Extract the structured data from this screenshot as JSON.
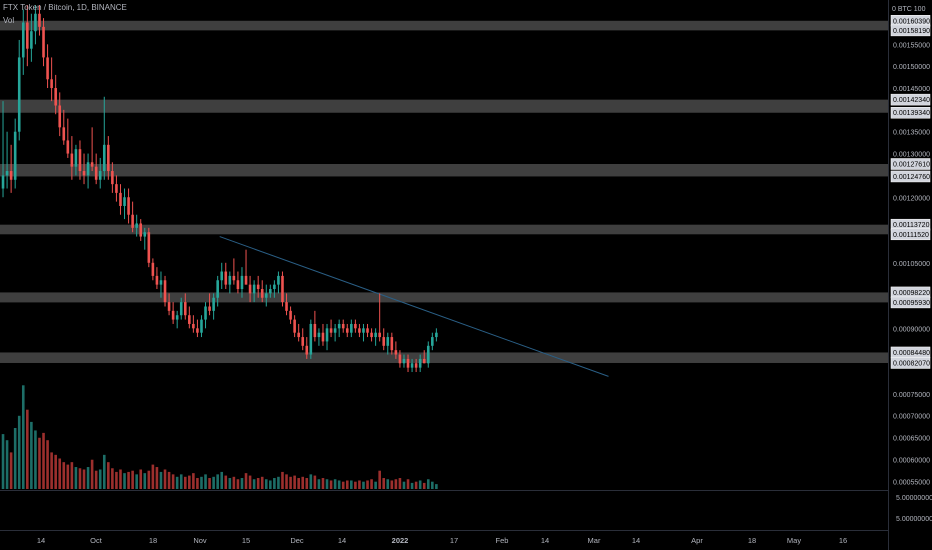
{
  "header": {
    "title": "FTX Token / Bitcoin, 1D, BINANCE",
    "vol_label": "Vol"
  },
  "colors": {
    "background": "#000000",
    "up": "#26a69a",
    "down": "#ef5350",
    "vol_up": "#1d6e67",
    "vol_down": "#9c2f2d",
    "zone": "#4a4a4a",
    "trendline": "#2a5f86",
    "axis_text": "#b2b5be",
    "label_bg": "#d1d4dc",
    "label_text": "#000000"
  },
  "chart_data": {
    "type": "candlestick",
    "symbol": "FTX Token / Bitcoin",
    "timeframe": "1D",
    "exchange": "BINANCE",
    "currency": "BTC",
    "ylim": [
      0.00053,
      0.00164
    ],
    "price_ticks": [
      "0.00155000",
      "0.00150000",
      "0.00145000",
      "0.00135000",
      "0.00130000",
      "0.00120000",
      "0.00105000",
      "0.00090000",
      "0.00075000",
      "0.00070000",
      "0.00065000",
      "0.00060000",
      "0.00055000"
    ],
    "axis_header": "0 BTC 100",
    "volume_scale_ticks": [
      "5.00000000",
      "5.00000000"
    ],
    "x_ticks": [
      "14",
      "Oct",
      "18",
      "Nov",
      "15",
      "Dec",
      "14",
      "2022",
      "17",
      "Feb",
      "14",
      "Mar",
      "14",
      "Apr",
      "18",
      "May",
      "16"
    ],
    "zones": [
      {
        "top": 0.0016039,
        "bottom": 0.0015819
      },
      {
        "top": 0.0014234,
        "bottom": 0.0013934
      },
      {
        "top": 0.0012761,
        "bottom": 0.0012476
      },
      {
        "top": 0.0011372,
        "bottom": 0.0011152
      },
      {
        "top": 0.0009822,
        "bottom": 0.0009593
      },
      {
        "top": 0.0008448,
        "bottom": 0.0008207
      }
    ],
    "trendline": {
      "from": {
        "date": "2021-10-26",
        "price": 0.00111
      },
      "to": {
        "date": "2022-01-30",
        "price": 0.00079
      }
    },
    "candles": [
      {
        "o": 0.00122,
        "h": 0.00142,
        "l": 0.0012,
        "c": 0.00125,
        "v": 0.45
      },
      {
        "o": 0.00125,
        "h": 0.00135,
        "l": 0.00122,
        "c": 0.00126,
        "v": 0.4
      },
      {
        "o": 0.00126,
        "h": 0.00132,
        "l": 0.00121,
        "c": 0.00124,
        "v": 0.3
      },
      {
        "o": 0.00124,
        "h": 0.00138,
        "l": 0.00122,
        "c": 0.00135,
        "v": 0.5
      },
      {
        "o": 0.00135,
        "h": 0.00156,
        "l": 0.00133,
        "c": 0.00152,
        "v": 0.6
      },
      {
        "o": 0.00152,
        "h": 0.00163,
        "l": 0.00148,
        "c": 0.0016,
        "v": 0.85
      },
      {
        "o": 0.0016,
        "h": 0.00164,
        "l": 0.0015,
        "c": 0.00154,
        "v": 0.65
      },
      {
        "o": 0.00154,
        "h": 0.00162,
        "l": 0.00151,
        "c": 0.00158,
        "v": 0.55
      },
      {
        "o": 0.00158,
        "h": 0.00164,
        "l": 0.00155,
        "c": 0.00162,
        "v": 0.48
      },
      {
        "o": 0.00162,
        "h": 0.00164,
        "l": 0.00157,
        "c": 0.00159,
        "v": 0.42
      },
      {
        "o": 0.00159,
        "h": 0.00161,
        "l": 0.0015,
        "c": 0.00152,
        "v": 0.46
      },
      {
        "o": 0.00152,
        "h": 0.00155,
        "l": 0.00145,
        "c": 0.00147,
        "v": 0.4
      },
      {
        "o": 0.00147,
        "h": 0.00152,
        "l": 0.00142,
        "c": 0.00145,
        "v": 0.3
      },
      {
        "o": 0.00145,
        "h": 0.00148,
        "l": 0.00139,
        "c": 0.00141,
        "v": 0.28
      },
      {
        "o": 0.00141,
        "h": 0.00144,
        "l": 0.00134,
        "c": 0.00136,
        "v": 0.25
      },
      {
        "o": 0.00136,
        "h": 0.0014,
        "l": 0.00132,
        "c": 0.00133,
        "v": 0.22
      },
      {
        "o": 0.00133,
        "h": 0.00138,
        "l": 0.00129,
        "c": 0.0013,
        "v": 0.2
      },
      {
        "o": 0.0013,
        "h": 0.00134,
        "l": 0.00124,
        "c": 0.00127,
        "v": 0.22
      },
      {
        "o": 0.00127,
        "h": 0.00132,
        "l": 0.00125,
        "c": 0.00131,
        "v": 0.18
      },
      {
        "o": 0.00131,
        "h": 0.00133,
        "l": 0.00124,
        "c": 0.00126,
        "v": 0.17
      },
      {
        "o": 0.00126,
        "h": 0.0013,
        "l": 0.00123,
        "c": 0.00125,
        "v": 0.16
      },
      {
        "o": 0.00125,
        "h": 0.0013,
        "l": 0.00122,
        "c": 0.00128,
        "v": 0.18
      },
      {
        "o": 0.00128,
        "h": 0.00136,
        "l": 0.00126,
        "c": 0.00127,
        "v": 0.24
      },
      {
        "o": 0.00127,
        "h": 0.0013,
        "l": 0.00123,
        "c": 0.00124,
        "v": 0.15
      },
      {
        "o": 0.00124,
        "h": 0.00129,
        "l": 0.00122,
        "c": 0.00126,
        "v": 0.16
      },
      {
        "o": 0.00126,
        "h": 0.00143,
        "l": 0.00124,
        "c": 0.00132,
        "v": 0.28
      },
      {
        "o": 0.00132,
        "h": 0.00134,
        "l": 0.00124,
        "c": 0.00126,
        "v": 0.22
      },
      {
        "o": 0.00126,
        "h": 0.00128,
        "l": 0.00121,
        "c": 0.00123,
        "v": 0.17
      },
      {
        "o": 0.00123,
        "h": 0.00125,
        "l": 0.00119,
        "c": 0.00121,
        "v": 0.14
      },
      {
        "o": 0.00121,
        "h": 0.00123,
        "l": 0.00116,
        "c": 0.00118,
        "v": 0.16
      },
      {
        "o": 0.00118,
        "h": 0.00122,
        "l": 0.00115,
        "c": 0.0012,
        "v": 0.13
      },
      {
        "o": 0.0012,
        "h": 0.00122,
        "l": 0.00114,
        "c": 0.00116,
        "v": 0.14
      },
      {
        "o": 0.00116,
        "h": 0.00119,
        "l": 0.00112,
        "c": 0.00113,
        "v": 0.15
      },
      {
        "o": 0.00113,
        "h": 0.00116,
        "l": 0.00111,
        "c": 0.00114,
        "v": 0.12
      },
      {
        "o": 0.00114,
        "h": 0.00115,
        "l": 0.0011,
        "c": 0.00111,
        "v": 0.16
      },
      {
        "o": 0.00111,
        "h": 0.00113,
        "l": 0.00108,
        "c": 0.00112,
        "v": 0.13
      },
      {
        "o": 0.00112,
        "h": 0.00113,
        "l": 0.00104,
        "c": 0.00105,
        "v": 0.15
      },
      {
        "o": 0.00105,
        "h": 0.00106,
        "l": 0.00101,
        "c": 0.00102,
        "v": 0.2
      },
      {
        "o": 0.00102,
        "h": 0.00104,
        "l": 0.00099,
        "c": 0.001,
        "v": 0.18
      },
      {
        "o": 0.001,
        "h": 0.00103,
        "l": 0.00097,
        "c": 0.00101,
        "v": 0.14
      },
      {
        "o": 0.00101,
        "h": 0.00102,
        "l": 0.00095,
        "c": 0.00096,
        "v": 0.16
      },
      {
        "o": 0.00096,
        "h": 0.00098,
        "l": 0.00093,
        "c": 0.00094,
        "v": 0.14
      },
      {
        "o": 0.00094,
        "h": 0.00096,
        "l": 0.00091,
        "c": 0.00092,
        "v": 0.12
      },
      {
        "o": 0.00092,
        "h": 0.00094,
        "l": 0.0009,
        "c": 0.00093,
        "v": 0.1
      },
      {
        "o": 0.00093,
        "h": 0.00097,
        "l": 0.00092,
        "c": 0.00096,
        "v": 0.12
      },
      {
        "o": 0.00096,
        "h": 0.00098,
        "l": 0.00092,
        "c": 0.00093,
        "v": 0.1
      },
      {
        "o": 0.00093,
        "h": 0.00095,
        "l": 0.0009,
        "c": 0.00091,
        "v": 0.11
      },
      {
        "o": 0.00091,
        "h": 0.00093,
        "l": 0.00089,
        "c": 0.0009,
        "v": 0.13
      },
      {
        "o": 0.0009,
        "h": 0.00092,
        "l": 0.00088,
        "c": 0.00089,
        "v": 0.09
      },
      {
        "o": 0.00089,
        "h": 0.00093,
        "l": 0.00088,
        "c": 0.00092,
        "v": 0.1
      },
      {
        "o": 0.00092,
        "h": 0.00096,
        "l": 0.0009,
        "c": 0.00095,
        "v": 0.12
      },
      {
        "o": 0.00095,
        "h": 0.00098,
        "l": 0.00093,
        "c": 0.00094,
        "v": 0.09
      },
      {
        "o": 0.00094,
        "h": 0.00098,
        "l": 0.00092,
        "c": 0.00097,
        "v": 0.1
      },
      {
        "o": 0.00097,
        "h": 0.00102,
        "l": 0.00095,
        "c": 0.00101,
        "v": 0.12
      },
      {
        "o": 0.00101,
        "h": 0.00105,
        "l": 0.00099,
        "c": 0.00103,
        "v": 0.14
      },
      {
        "o": 0.00103,
        "h": 0.00105,
        "l": 0.00099,
        "c": 0.001,
        "v": 0.11
      },
      {
        "o": 0.001,
        "h": 0.00103,
        "l": 0.00098,
        "c": 0.00102,
        "v": 0.09
      },
      {
        "o": 0.00102,
        "h": 0.00106,
        "l": 0.001,
        "c": 0.00101,
        "v": 0.1
      },
      {
        "o": 0.00101,
        "h": 0.00103,
        "l": 0.00098,
        "c": 0.00099,
        "v": 0.08
      },
      {
        "o": 0.00099,
        "h": 0.00104,
        "l": 0.00097,
        "c": 0.00102,
        "v": 0.09
      },
      {
        "o": 0.00102,
        "h": 0.00108,
        "l": 0.001,
        "c": 0.001,
        "v": 0.13
      },
      {
        "o": 0.001,
        "h": 0.00102,
        "l": 0.00096,
        "c": 0.00098,
        "v": 0.11
      },
      {
        "o": 0.00098,
        "h": 0.00101,
        "l": 0.00096,
        "c": 0.001,
        "v": 0.08
      },
      {
        "o": 0.001,
        "h": 0.00102,
        "l": 0.00097,
        "c": 0.00099,
        "v": 0.09
      },
      {
        "o": 0.00099,
        "h": 0.00101,
        "l": 0.00096,
        "c": 0.00097,
        "v": 0.1
      },
      {
        "o": 0.00097,
        "h": 0.001,
        "l": 0.00095,
        "c": 0.00098,
        "v": 0.08
      },
      {
        "o": 0.00098,
        "h": 0.001,
        "l": 0.00097,
        "c": 0.00099,
        "v": 0.07
      },
      {
        "o": 0.00099,
        "h": 0.00101,
        "l": 0.00097,
        "c": 0.001,
        "v": 0.09
      },
      {
        "o": 0.001,
        "h": 0.00103,
        "l": 0.00098,
        "c": 0.00102,
        "v": 0.1
      },
      {
        "o": 0.00102,
        "h": 0.00103,
        "l": 0.00095,
        "c": 0.00096,
        "v": 0.14
      },
      {
        "o": 0.00096,
        "h": 0.00098,
        "l": 0.00093,
        "c": 0.00094,
        "v": 0.12
      },
      {
        "o": 0.00094,
        "h": 0.00095,
        "l": 0.00091,
        "c": 0.00092,
        "v": 0.1
      },
      {
        "o": 0.00092,
        "h": 0.00093,
        "l": 0.00088,
        "c": 0.00089,
        "v": 0.11
      },
      {
        "o": 0.00089,
        "h": 0.00091,
        "l": 0.00087,
        "c": 0.00088,
        "v": 0.09
      },
      {
        "o": 0.00088,
        "h": 0.0009,
        "l": 0.00085,
        "c": 0.00086,
        "v": 0.1
      },
      {
        "o": 0.00086,
        "h": 0.00088,
        "l": 0.00083,
        "c": 0.00084,
        "v": 0.09
      },
      {
        "o": 0.00084,
        "h": 0.00092,
        "l": 0.00083,
        "c": 0.00091,
        "v": 0.12
      },
      {
        "o": 0.00091,
        "h": 0.00094,
        "l": 0.00087,
        "c": 0.00088,
        "v": 0.11
      },
      {
        "o": 0.00088,
        "h": 0.0009,
        "l": 0.00086,
        "c": 0.00089,
        "v": 0.08
      },
      {
        "o": 0.00089,
        "h": 0.00091,
        "l": 0.00086,
        "c": 0.00087,
        "v": 0.09
      },
      {
        "o": 0.00087,
        "h": 0.00091,
        "l": 0.00085,
        "c": 0.0009,
        "v": 0.08
      },
      {
        "o": 0.0009,
        "h": 0.00092,
        "l": 0.00088,
        "c": 0.00089,
        "v": 0.07
      },
      {
        "o": 0.00089,
        "h": 0.00091,
        "l": 0.00087,
        "c": 0.0009,
        "v": 0.08
      },
      {
        "o": 0.0009,
        "h": 0.00092,
        "l": 0.00088,
        "c": 0.00091,
        "v": 0.07
      },
      {
        "o": 0.00091,
        "h": 0.00092,
        "l": 0.00089,
        "c": 0.0009,
        "v": 0.06
      },
      {
        "o": 0.0009,
        "h": 0.00091,
        "l": 0.00088,
        "c": 0.00089,
        "v": 0.07
      },
      {
        "o": 0.00089,
        "h": 0.00092,
        "l": 0.00088,
        "c": 0.00091,
        "v": 0.07
      },
      {
        "o": 0.00091,
        "h": 0.00092,
        "l": 0.00089,
        "c": 0.0009,
        "v": 0.06
      },
      {
        "o": 0.0009,
        "h": 0.00091,
        "l": 0.00088,
        "c": 0.00089,
        "v": 0.07
      },
      {
        "o": 0.00089,
        "h": 0.00091,
        "l": 0.00087,
        "c": 0.0009,
        "v": 0.06
      },
      {
        "o": 0.0009,
        "h": 0.00091,
        "l": 0.00088,
        "c": 0.00089,
        "v": 0.07
      },
      {
        "o": 0.00089,
        "h": 0.0009,
        "l": 0.00087,
        "c": 0.00088,
        "v": 0.08
      },
      {
        "o": 0.00088,
        "h": 0.0009,
        "l": 0.00086,
        "c": 0.00089,
        "v": 0.06
      },
      {
        "o": 0.00089,
        "h": 0.00098,
        "l": 0.00087,
        "c": 0.00088,
        "v": 0.15
      },
      {
        "o": 0.00088,
        "h": 0.0009,
        "l": 0.00085,
        "c": 0.00086,
        "v": 0.09
      },
      {
        "o": 0.00086,
        "h": 0.00089,
        "l": 0.00084,
        "c": 0.00088,
        "v": 0.08
      },
      {
        "o": 0.00088,
        "h": 0.00089,
        "l": 0.00084,
        "c": 0.00085,
        "v": 0.07
      },
      {
        "o": 0.00085,
        "h": 0.00087,
        "l": 0.00083,
        "c": 0.00084,
        "v": 0.08
      },
      {
        "o": 0.00084,
        "h": 0.00085,
        "l": 0.00081,
        "c": 0.00082,
        "v": 0.09
      },
      {
        "o": 0.00082,
        "h": 0.00084,
        "l": 0.00081,
        "c": 0.00083,
        "v": 0.06
      },
      {
        "o": 0.00083,
        "h": 0.00084,
        "l": 0.0008,
        "c": 0.00081,
        "v": 0.08
      },
      {
        "o": 0.00081,
        "h": 0.00083,
        "l": 0.0008,
        "c": 0.00082,
        "v": 0.05
      },
      {
        "o": 0.00082,
        "h": 0.00083,
        "l": 0.0008,
        "c": 0.00081,
        "v": 0.06
      },
      {
        "o": 0.00081,
        "h": 0.00084,
        "l": 0.0008,
        "c": 0.00083,
        "v": 0.07
      },
      {
        "o": 0.00083,
        "h": 0.00085,
        "l": 0.00082,
        "c": 0.00082,
        "v": 0.05
      },
      {
        "o": 0.00082,
        "h": 0.00087,
        "l": 0.00081,
        "c": 0.00086,
        "v": 0.08
      },
      {
        "o": 0.00086,
        "h": 0.00089,
        "l": 0.00085,
        "c": 0.00088,
        "v": 0.06
      },
      {
        "o": 0.00088,
        "h": 0.0009,
        "l": 0.00087,
        "c": 0.00089,
        "v": 0.04
      }
    ]
  }
}
